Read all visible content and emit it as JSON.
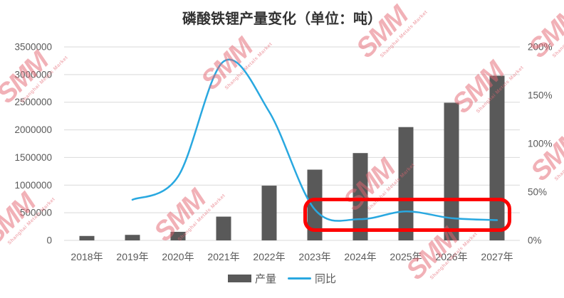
{
  "title": "磷酸铁锂产量变化（单位：吨）",
  "colors": {
    "bar": "#595959",
    "line": "#29A8E0",
    "grid": "#D9D9D9",
    "axis_text": "#595959",
    "title_text": "#333333",
    "annotation": "#FE0000",
    "watermark": "#E56571"
  },
  "legend": [
    {
      "label": "产量",
      "swatch": "bar"
    },
    {
      "label": "同比",
      "swatch": "line"
    }
  ],
  "watermark": {
    "text": "SMM",
    "subtext": "Shanghai Metals Market"
  },
  "chart_data": {
    "type": "bar+line combo",
    "title": "磷酸铁锂产量变化（单位：吨）",
    "categories": [
      "2018年",
      "2019年",
      "2020年",
      "2021年",
      "2022年",
      "2023年",
      "2024年",
      "2025年",
      "2026年",
      "2027年"
    ],
    "series": [
      {
        "name": "产量",
        "type": "bar",
        "axis": "left",
        "values": [
          80000,
          100000,
          155000,
          430000,
          990000,
          1280000,
          1580000,
          2050000,
          2490000,
          2980000
        ]
      },
      {
        "name": "同比",
        "type": "line",
        "axis": "right",
        "unit": "%",
        "values": [
          null,
          42,
          66,
          185,
          133,
          32,
          22,
          30,
          23,
          21
        ]
      }
    ],
    "left_axis": {
      "min": 0,
      "max": 3500000,
      "step": 500000,
      "tick_labels": [
        "0",
        "500000",
        "1000000",
        "1500000",
        "2000000",
        "2500000",
        "3000000",
        "3500000"
      ]
    },
    "right_axis": {
      "min": 0,
      "max": 200,
      "step": 50,
      "tick_labels": [
        "0%",
        "50%",
        "100%",
        "150%",
        "200%"
      ]
    },
    "grid": "horizontal only",
    "legend_position": "bottom center",
    "annotation": {
      "shape": "red rounded rectangle",
      "highlights": "同比 line from 2023年 to 2027年",
      "x_start_category": "2023年",
      "x_end_category": "2027年",
      "y_axis": "right",
      "y_from_pct": 9,
      "y_to_pct": 44
    }
  }
}
